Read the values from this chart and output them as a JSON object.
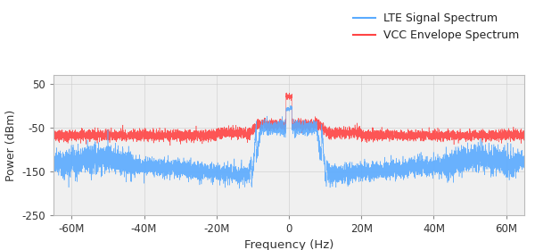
{
  "xlabel": "Frequency (Hz)",
  "ylabel": "Power (dBm)",
  "xlim": [
    -65000000.0,
    65000000.0
  ],
  "ylim": [
    -250,
    70
  ],
  "yticks": [
    50,
    -50,
    -150,
    -250
  ],
  "xtick_labels": [
    "-60M",
    "-40M",
    "-20M",
    "0",
    "20M",
    "40M",
    "60M"
  ],
  "xtick_vals": [
    -60000000.0,
    -40000000.0,
    -20000000.0,
    0,
    20000000.0,
    40000000.0,
    60000000.0
  ],
  "lte_color": "#5aabff",
  "vcc_color": "#ff4444",
  "legend_lte": "LTE Signal Spectrum",
  "legend_vcc": "VCC Envelope Spectrum",
  "lte_noise_floor": -152,
  "lte_signal_level": -50,
  "vcc_noise_floor": -68,
  "vcc_signal_level": -44,
  "bw_hz": 9000000.0,
  "seed": 42,
  "bg_color": "#f0f0f0"
}
